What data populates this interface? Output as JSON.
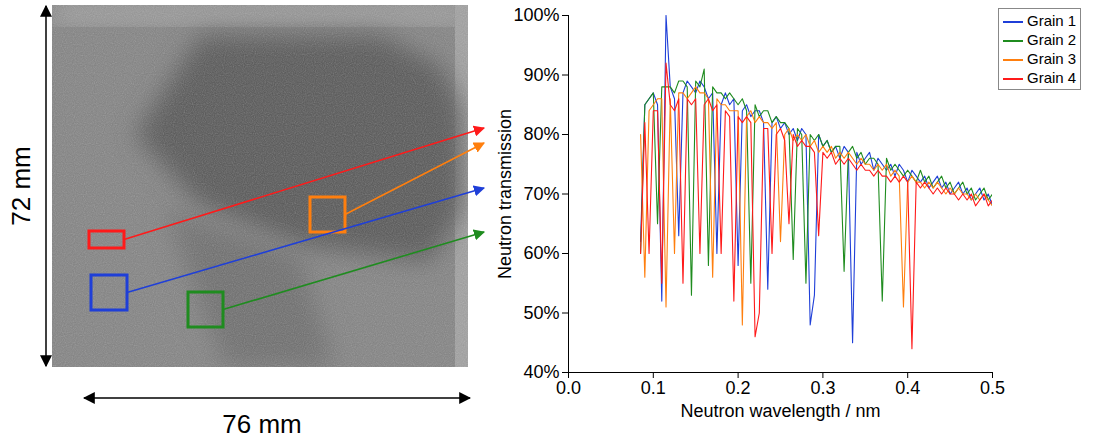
{
  "chart_data": {
    "type": "line",
    "x_label": "Neutron wavelength / nm",
    "y_label": "Neutron transmission",
    "annotations": [
      "72 mm",
      "76 mm"
    ],
    "xlim": [
      0,
      0.5
    ],
    "xticks": [
      {
        "value": 0,
        "label": "0.0"
      },
      0.1,
      0.2,
      0.3,
      0.4,
      0.5
    ],
    "ylim": [
      40,
      100
    ],
    "yticks": [
      {
        "value": 40,
        "label": "40%"
      },
      {
        "value": 50,
        "label": "50%"
      },
      {
        "value": 60,
        "label": "60%"
      },
      {
        "value": 70,
        "label": "70%"
      },
      {
        "value": 80,
        "label": "80%"
      },
      {
        "value": 90,
        "label": "90%"
      },
      {
        "value": 100,
        "label": "100%"
      }
    ],
    "grid": false,
    "legend": "top-right",
    "x": [
      0.085,
      0.09,
      0.095,
      0.1,
      0.105,
      0.11,
      0.115,
      0.12,
      0.125,
      0.13,
      0.135,
      0.14,
      0.145,
      0.15,
      0.155,
      0.16,
      0.165,
      0.17,
      0.175,
      0.18,
      0.185,
      0.19,
      0.195,
      0.2,
      0.205,
      0.21,
      0.215,
      0.22,
      0.225,
      0.23,
      0.235,
      0.24,
      0.245,
      0.25,
      0.255,
      0.26,
      0.265,
      0.27,
      0.275,
      0.28,
      0.285,
      0.29,
      0.295,
      0.3,
      0.305,
      0.31,
      0.315,
      0.32,
      0.325,
      0.33,
      0.335,
      0.34,
      0.345,
      0.35,
      0.355,
      0.36,
      0.365,
      0.37,
      0.375,
      0.38,
      0.385,
      0.39,
      0.395,
      0.4,
      0.405,
      0.41,
      0.415,
      0.42,
      0.425,
      0.43,
      0.435,
      0.44,
      0.445,
      0.45,
      0.455,
      0.46,
      0.465,
      0.47,
      0.475,
      0.48,
      0.485,
      0.49,
      0.495,
      0.5
    ],
    "series": [
      {
        "name": "Grain 1",
        "color": "#1f3fd8",
        "values": [
          62,
          85,
          86,
          87,
          85,
          52,
          100,
          88,
          86,
          63,
          87,
          89,
          88,
          87,
          89,
          88,
          86,
          87,
          60,
          85,
          87,
          85,
          86,
          58,
          84,
          85,
          83,
          84,
          84,
          82,
          54,
          82,
          83,
          81,
          82,
          80,
          81,
          79,
          81,
          80,
          48,
          53,
          80,
          78,
          79,
          77,
          78,
          76,
          78,
          77,
          45,
          77,
          75,
          76,
          77,
          74,
          76,
          75,
          74,
          75,
          73,
          75,
          74,
          72,
          74,
          73,
          72,
          73,
          71,
          72,
          73,
          71,
          72,
          70,
          71,
          72,
          70,
          71,
          69,
          70,
          71,
          69,
          70,
          68
        ]
      },
      {
        "name": "Grain 2",
        "color": "#1f8c1f",
        "values": [
          60,
          85,
          86,
          87,
          65,
          88,
          88,
          88,
          87,
          89,
          89,
          88,
          53,
          89,
          88,
          91,
          58,
          88,
          87,
          87,
          86,
          87,
          86,
          85,
          86,
          84,
          55,
          85,
          83,
          84,
          84,
          82,
          83,
          82,
          82,
          81,
          59,
          81,
          80,
          55,
          80,
          79,
          80,
          78,
          79,
          77,
          78,
          78,
          57,
          77,
          78,
          76,
          77,
          75,
          76,
          76,
          75,
          52,
          76,
          74,
          75,
          74,
          73,
          74,
          73,
          72,
          74,
          72,
          73,
          71,
          72,
          73,
          71,
          72,
          70,
          71,
          72,
          70,
          71,
          69,
          70,
          71,
          69,
          70
        ]
      },
      {
        "name": "Grain 3",
        "color": "#ff7f0e",
        "values": [
          80,
          56,
          84,
          85,
          86,
          86,
          51,
          86,
          60,
          87,
          87,
          86,
          87,
          88,
          87,
          87,
          86,
          56,
          86,
          85,
          85,
          84,
          84,
          84,
          48,
          83,
          84,
          82,
          83,
          82,
          82,
          81,
          82,
          62,
          80,
          81,
          79,
          80,
          79,
          80,
          78,
          79,
          77,
          78,
          77,
          78,
          76,
          77,
          76,
          77,
          76,
          75,
          76,
          75,
          75,
          74,
          75,
          74,
          75,
          73,
          74,
          73,
          51,
          72,
          73,
          72,
          72,
          71,
          72,
          71,
          72,
          71,
          70,
          71,
          70,
          71,
          70,
          70,
          69,
          70,
          69,
          70,
          69,
          68
        ]
      },
      {
        "name": "Grain 4",
        "color": "#ff1a1a",
        "values": [
          60,
          82,
          60,
          84,
          84,
          55,
          92,
          85,
          84,
          86,
          55,
          86,
          85,
          86,
          60,
          85,
          86,
          84,
          85,
          60,
          84,
          83,
          52,
          83,
          82,
          83,
          82,
          46,
          50,
          81,
          81,
          60,
          80,
          81,
          79,
          65,
          80,
          78,
          79,
          78,
          78,
          77,
          63,
          77,
          76,
          77,
          75,
          76,
          75,
          76,
          75,
          74,
          75,
          74,
          74,
          73,
          74,
          73,
          73,
          72,
          73,
          72,
          73,
          72,
          44,
          72,
          71,
          72,
          71,
          70,
          71,
          70,
          71,
          70,
          70,
          69,
          70,
          69,
          70,
          68,
          69,
          70,
          68,
          69
        ]
      }
    ]
  }
}
